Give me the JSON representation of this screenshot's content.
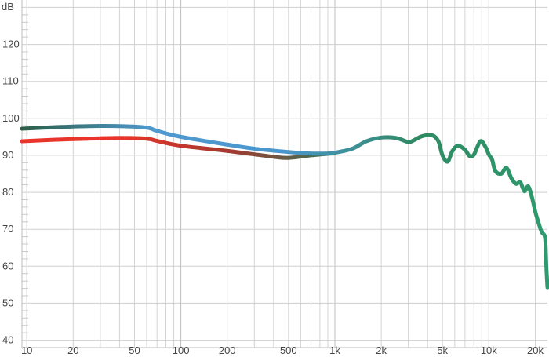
{
  "chart_data": {
    "type": "line",
    "x_scale": "log",
    "xlim": [
      9.3,
      24000
    ],
    "ylim": [
      38,
      132
    ],
    "grid": true,
    "ylabel": "dB",
    "x_ticks": [
      {
        "value": 10,
        "label": "10"
      },
      {
        "value": 20,
        "label": "20"
      },
      {
        "value": 50,
        "label": "50"
      },
      {
        "value": 100,
        "label": "100"
      },
      {
        "value": 200,
        "label": "200"
      },
      {
        "value": 500,
        "label": "500"
      },
      {
        "value": 1000,
        "label": "1k"
      },
      {
        "value": 2000,
        "label": "2k"
      },
      {
        "value": 5000,
        "label": "5k"
      },
      {
        "value": 10000,
        "label": "10k"
      },
      {
        "value": 20000,
        "label": "20k"
      }
    ],
    "y_ticks": [
      {
        "value": 40,
        "label": "40"
      },
      {
        "value": 50,
        "label": "50"
      },
      {
        "value": 60,
        "label": "60"
      },
      {
        "value": 70,
        "label": "70"
      },
      {
        "value": 80,
        "label": "80"
      },
      {
        "value": 90,
        "label": "90"
      },
      {
        "value": 100,
        "label": "100"
      },
      {
        "value": 110,
        "label": "110"
      },
      {
        "value": 120,
        "label": "120"
      }
    ],
    "series": [
      {
        "color": "#e8342a",
        "points": [
          [
            9.3,
            93.8
          ],
          [
            15,
            94.2
          ],
          [
            25,
            94.5
          ],
          [
            40,
            94.7
          ],
          [
            60,
            94.5
          ],
          [
            70,
            93.9
          ],
          [
            100,
            92.6
          ],
          [
            200,
            91.2
          ],
          [
            400,
            89.6
          ],
          [
            500,
            89.3
          ],
          [
            700,
            90.0
          ],
          [
            1000,
            90.6
          ]
        ]
      },
      {
        "colors": [
          "#2d5e48",
          "#4f9bd0",
          "#4a96cc",
          "#2f8a62",
          "#2e9a6e"
        ],
        "points": [
          [
            9.3,
            97.2
          ],
          [
            15,
            97.6
          ],
          [
            25,
            97.9
          ],
          [
            40,
            97.9
          ],
          [
            60,
            97.5
          ],
          [
            70,
            96.6
          ],
          [
            100,
            95.0
          ],
          [
            200,
            92.9
          ],
          [
            300,
            91.8
          ],
          [
            500,
            90.9
          ],
          [
            700,
            90.5
          ],
          [
            900,
            90.5
          ],
          [
            1000,
            90.7
          ],
          [
            1300,
            91.8
          ],
          [
            1600,
            93.8
          ],
          [
            2000,
            94.8
          ],
          [
            2500,
            94.7
          ],
          [
            3000,
            93.6
          ],
          [
            3300,
            94.2
          ],
          [
            3700,
            95.2
          ],
          [
            4300,
            95.4
          ],
          [
            4700,
            93.8
          ],
          [
            5000,
            90.0
          ],
          [
            5400,
            88.3
          ],
          [
            5800,
            91.2
          ],
          [
            6300,
            92.6
          ],
          [
            7000,
            91.5
          ],
          [
            7500,
            89.8
          ],
          [
            8000,
            90.2
          ],
          [
            8800,
            93.8
          ],
          [
            9500,
            92.3
          ],
          [
            10000,
            90.2
          ],
          [
            10500,
            88.8
          ],
          [
            11000,
            85.8
          ],
          [
            12000,
            85.0
          ],
          [
            13000,
            86.6
          ],
          [
            14000,
            83.8
          ],
          [
            15000,
            82.3
          ],
          [
            16000,
            82.7
          ],
          [
            17000,
            80.3
          ],
          [
            18000,
            81.6
          ],
          [
            19000,
            78.8
          ],
          [
            20000,
            74.8
          ],
          [
            21000,
            71.8
          ],
          [
            22000,
            69.3
          ],
          [
            23000,
            68.3
          ],
          [
            23300,
            66.3
          ],
          [
            23600,
            60.0
          ],
          [
            24000,
            54.3
          ]
        ]
      }
    ]
  }
}
